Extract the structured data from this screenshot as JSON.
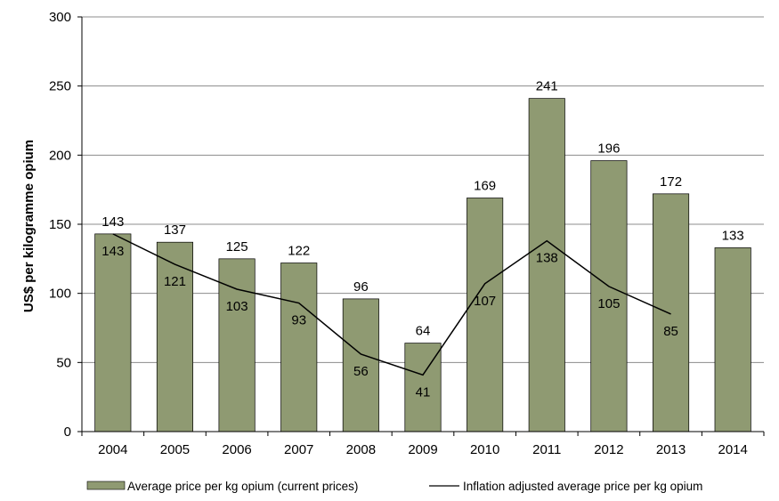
{
  "chart_data": {
    "type": "bar",
    "title": "",
    "xlabel": "",
    "ylabel": "US$ per kilogramme opium",
    "ylim": [
      0,
      300
    ],
    "yticks": [
      0,
      50,
      100,
      150,
      200,
      250,
      300
    ],
    "grid": true,
    "legend_position": "bottom",
    "categories": [
      "2004",
      "2005",
      "2006",
      "2007",
      "2008",
      "2009",
      "2010",
      "2011",
      "2012",
      "2013",
      "2014"
    ],
    "series": [
      {
        "name": "Average price per kg opium (current prices)",
        "type": "bar",
        "color": "#8f9a72",
        "values": [
          143,
          137,
          125,
          122,
          96,
          64,
          169,
          241,
          196,
          172,
          133
        ]
      },
      {
        "name": "Inflation adjusted average price per kg opium",
        "type": "line",
        "color": "#000000",
        "values": [
          143,
          121,
          103,
          93,
          56,
          41,
          107,
          138,
          105,
          85,
          null
        ]
      }
    ]
  }
}
